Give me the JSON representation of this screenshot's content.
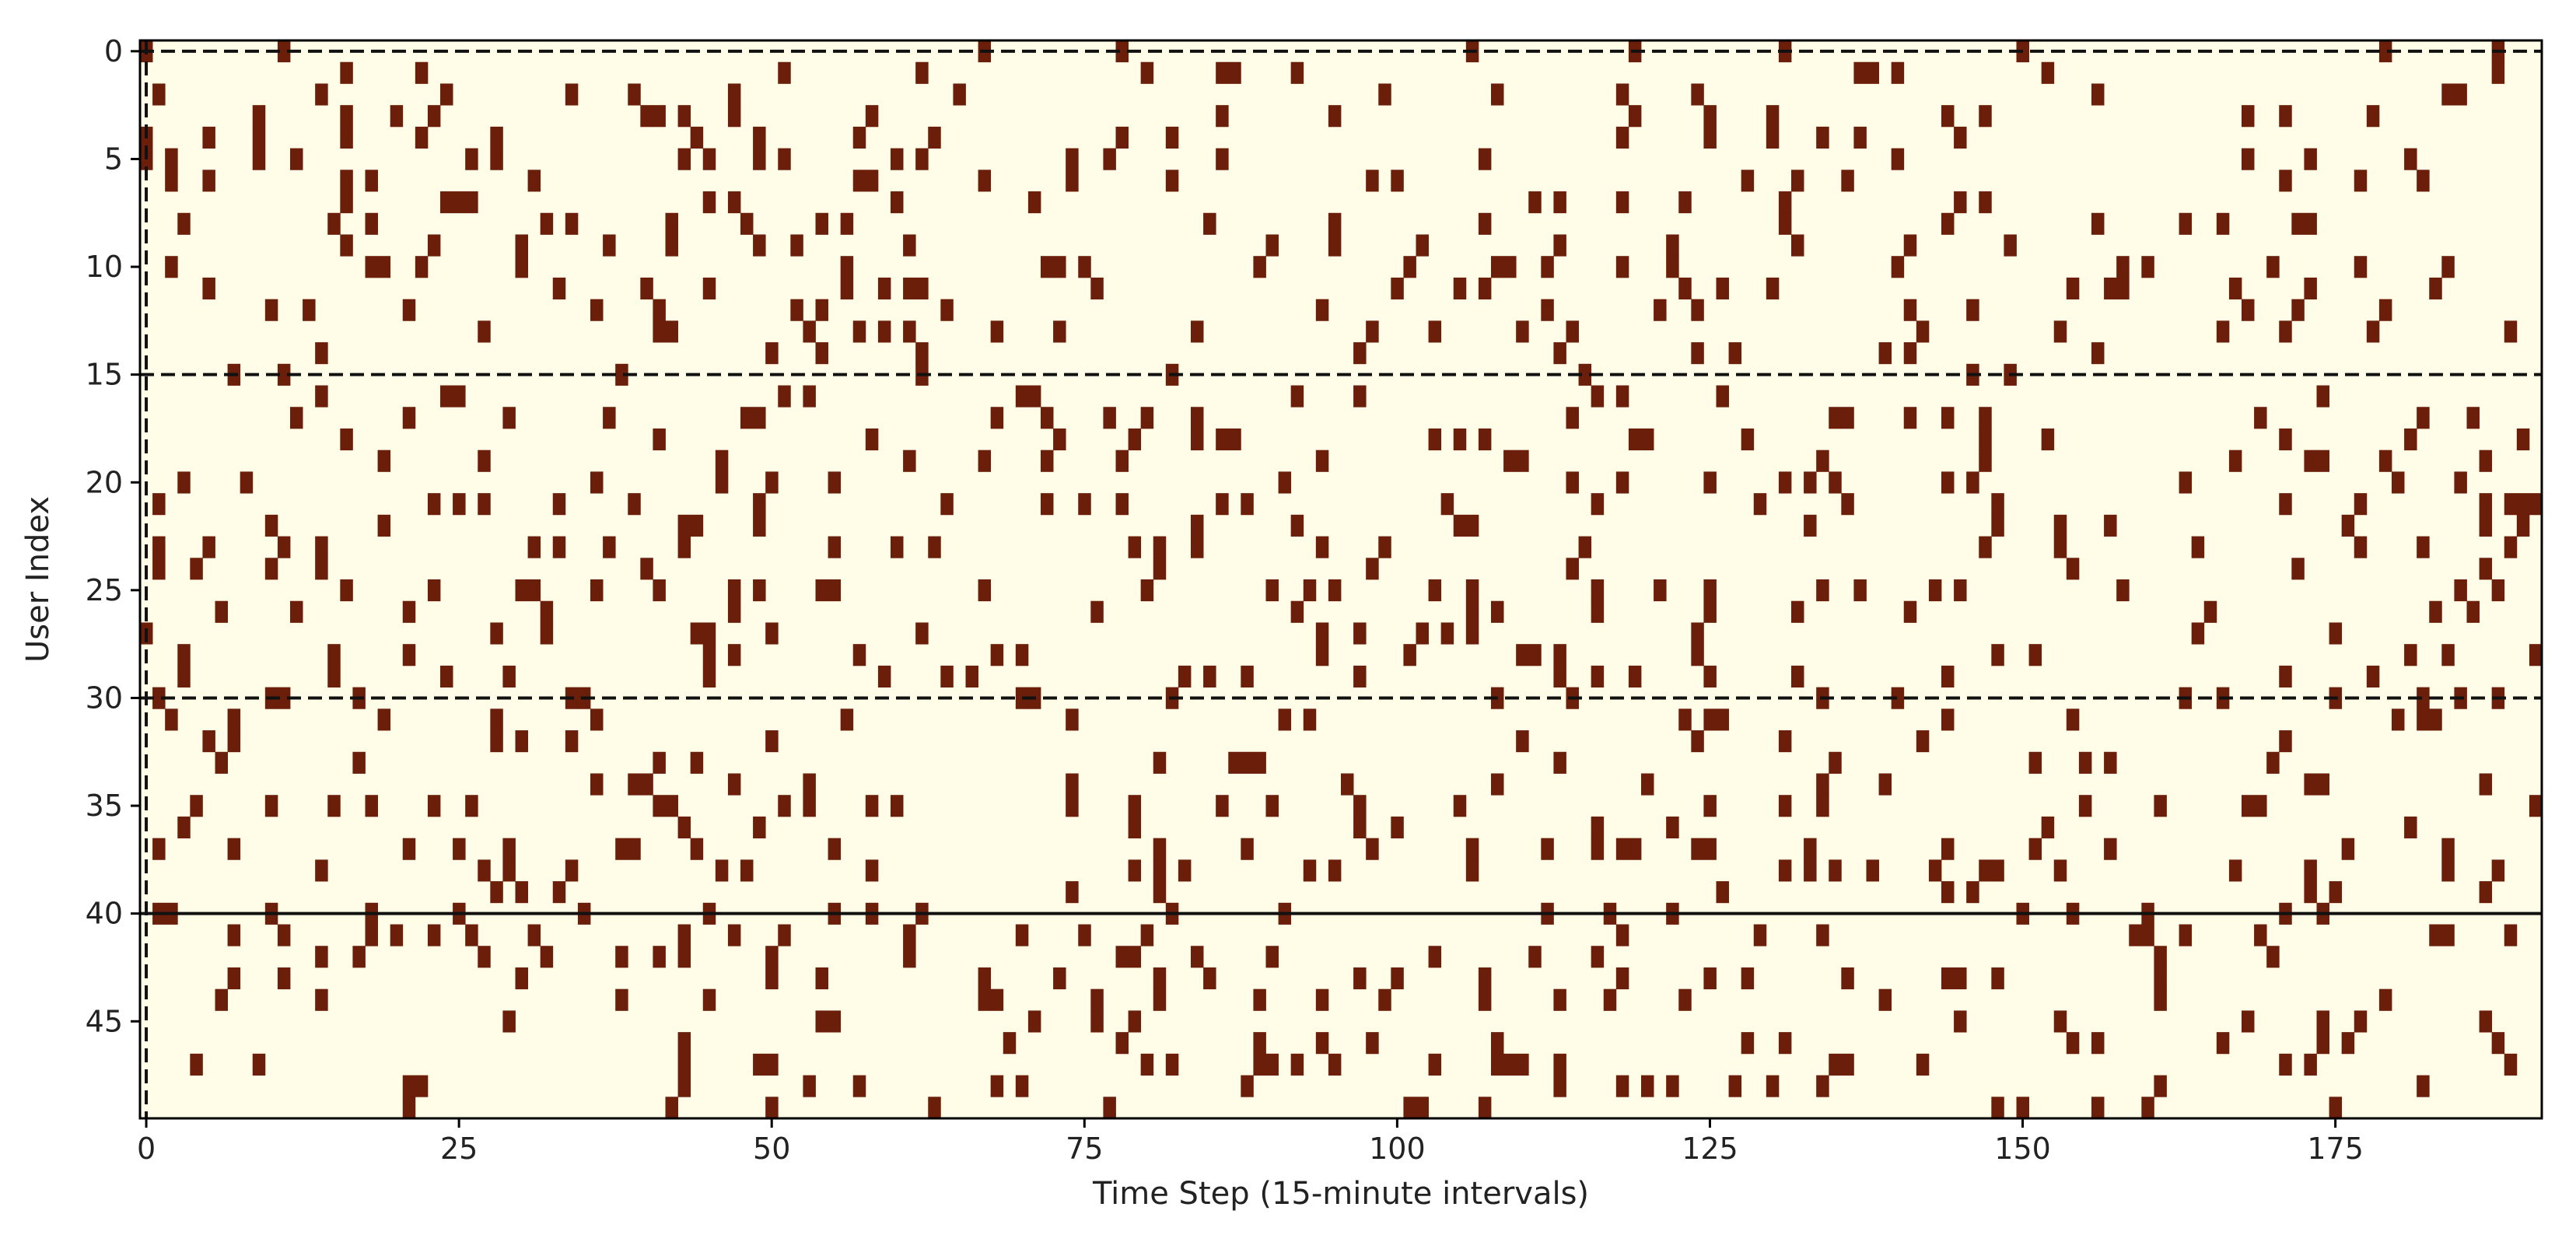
{
  "chart_data": {
    "type": "heatmap",
    "title": "",
    "xlabel": "Time Step (15-minute intervals)",
    "ylabel": "User Index",
    "x_range": [
      0,
      191
    ],
    "y_range": [
      0,
      49
    ],
    "x_ticks": [
      0,
      25,
      50,
      75,
      100,
      125,
      150,
      175
    ],
    "y_ticks": [
      0,
      5,
      10,
      15,
      20,
      25,
      30,
      35,
      40,
      45
    ],
    "y_axis_inverted": true,
    "colors": {
      "inactive": "#FFFDE7",
      "active": "#6B1E0A",
      "reference_line": "#111111"
    },
    "value_encoding": {
      "0": "inactive",
      "1": "active"
    },
    "reference_lines": {
      "horizontal_dashed": [
        0,
        15,
        30
      ],
      "horizontal_solid": [
        40
      ],
      "vertical_dashed": [
        0
      ]
    },
    "active_fraction": 0.09,
    "binary_activity_grid": "cells with value 1 (active) scattered sparsely across 50 users x 192 time steps"
  }
}
